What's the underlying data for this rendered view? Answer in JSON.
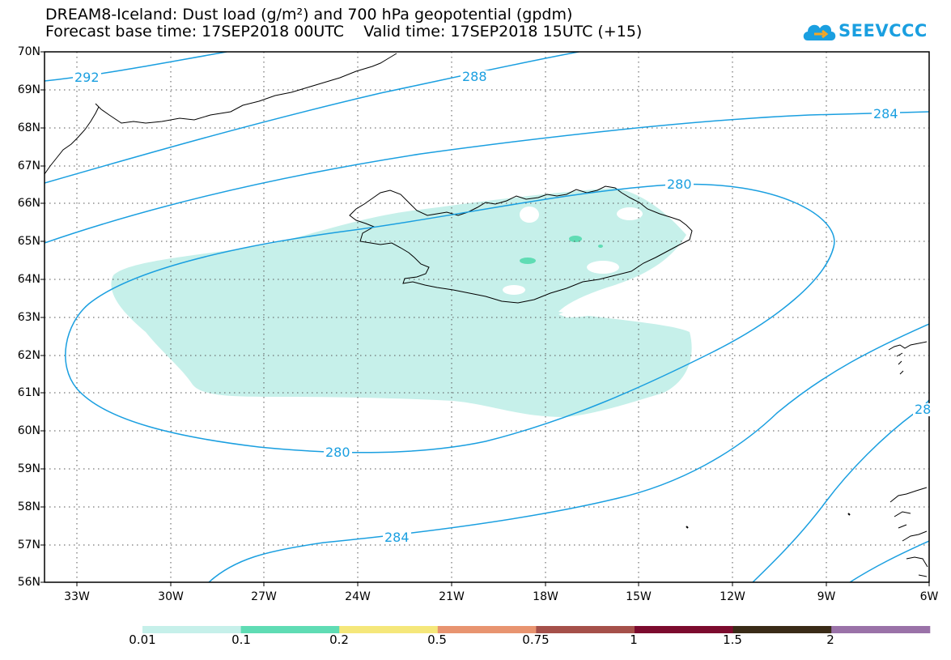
{
  "title_line1": "DREAM8-Iceland: Dust load (g/m²) and 700 hPa geopotential (gpdm)",
  "title_line2": "Forecast base time: 17SEP2018 00UTC    Valid time: 17SEP2018 15UTC (+15)",
  "logo_text": "SEEVCCC",
  "lat_labels": [
    "70N",
    "69N",
    "68N",
    "67N",
    "66N",
    "65N",
    "64N",
    "63N",
    "62N",
    "61N",
    "60N",
    "59N",
    "58N",
    "57N",
    "56N"
  ],
  "lon_labels": [
    "33W",
    "30W",
    "27W",
    "24W",
    "21W",
    "18W",
    "15W",
    "12W",
    "9W",
    "6W"
  ],
  "colorbar": {
    "labels": [
      "0.01",
      "0.1",
      "0.2",
      "0.5",
      "0.75",
      "1",
      "1.5",
      "2"
    ],
    "colors": [
      "#c6f0ea",
      "#5fdcb4",
      "#f5e77a",
      "#e89470",
      "#a5504a",
      "#7c0b2e",
      "#3a2b17",
      "#9a72a8"
    ]
  },
  "contour_labels": {
    "c292": "292",
    "c288": "288",
    "c284a": "284",
    "c280a": "280",
    "c280b": "280",
    "c284b": "284",
    "c28x": "28"
  },
  "colors": {
    "contour": "#1a9fe0",
    "dust_light": "#c6f0ea",
    "dust_mid": "#5fdcb4",
    "coast": "#000000"
  }
}
